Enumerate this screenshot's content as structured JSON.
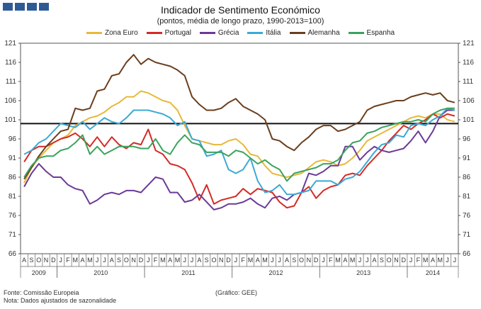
{
  "header": {
    "title": "Indicador de Sentimento Económico",
    "subtitle": "(pontos, média de longo prazo, 1990-2013=100)"
  },
  "footer": {
    "source": "Fonte: Comissão Europeia",
    "note": "Nota: Dados ajustados de sazonalidade",
    "credit": "(Gráfico: GEE)"
  },
  "chart_data": {
    "type": "line",
    "title": "Indicador de Sentimento Económico",
    "subtitle": "(pontos, média de longo prazo, 1990-2013=100)",
    "ylim": [
      66,
      121
    ],
    "yticks": [
      66,
      71,
      76,
      81,
      86,
      91,
      96,
      101,
      106,
      111,
      116,
      121
    ],
    "reference_line": 100,
    "legend_position": "top",
    "months": [
      "A",
      "S",
      "O",
      "N",
      "D",
      "J",
      "F",
      "M",
      "A",
      "M",
      "J",
      "J",
      "A",
      "S",
      "O",
      "N",
      "D",
      "J",
      "F",
      "M",
      "A",
      "M",
      "J",
      "J",
      "A",
      "S",
      "O",
      "N",
      "D",
      "J",
      "F",
      "M",
      "A",
      "M",
      "J",
      "J",
      "A",
      "S",
      "O",
      "N",
      "D",
      "J",
      "F",
      "M",
      "A",
      "M",
      "J",
      "J",
      "A",
      "S",
      "O",
      "N",
      "D",
      "J",
      "F",
      "M",
      "A",
      "M",
      "J",
      "J"
    ],
    "years": [
      {
        "label": "2009",
        "start": 0,
        "count": 5
      },
      {
        "label": "2010",
        "start": 5,
        "count": 12
      },
      {
        "label": "2011",
        "start": 17,
        "count": 12
      },
      {
        "label": "2012",
        "start": 29,
        "count": 12
      },
      {
        "label": "2013",
        "start": 41,
        "count": 12
      },
      {
        "label": "2014",
        "start": 53,
        "count": 7
      }
    ],
    "series": [
      {
        "name": "Zona Euro",
        "color": "#e8b83a",
        "values": [
          84.5,
          88.5,
          91,
          93,
          95,
          96,
          97,
          99.5,
          100.5,
          101.5,
          102,
          103,
          104.5,
          105.5,
          107,
          107,
          108.5,
          108,
          107,
          106,
          105.5,
          103.5,
          99.5,
          96,
          95.5,
          95,
          94.5,
          94.5,
          95.5,
          96,
          94.5,
          92,
          91.5,
          89,
          87,
          86.5,
          86,
          86.5,
          87,
          88.5,
          90,
          90.5,
          90,
          89,
          89.5,
          91,
          93,
          95.5,
          96.5,
          97.5,
          98.5,
          99.5,
          100.5,
          101.5,
          102,
          101.5,
          102.5,
          102.5,
          101,
          100.5
        ]
      },
      {
        "name": "Portugal",
        "color": "#d42a26",
        "values": [
          90,
          93,
          94,
          94,
          95,
          96,
          96.5,
          97.5,
          96,
          94,
          96.5,
          94,
          96.5,
          94.5,
          93.5,
          95,
          94.5,
          98.5,
          93,
          92,
          89.5,
          89,
          88,
          84.5,
          80,
          84,
          79,
          80,
          80.5,
          81,
          83,
          81.5,
          83,
          82.5,
          82,
          79.5,
          78,
          78.5,
          82,
          83.5,
          80.5,
          82.5,
          83.5,
          84,
          86.5,
          87,
          86.5,
          89,
          91,
          93,
          95.5,
          97.5,
          99.5,
          98.5,
          100,
          101,
          102.5,
          101.5,
          102.5,
          102
        ]
      },
      {
        "name": "Grécia",
        "color": "#6b3a96",
        "values": [
          83.5,
          87,
          89.5,
          87.5,
          86,
          86,
          84,
          83,
          82.5,
          79,
          80,
          81.5,
          82,
          81.5,
          82.5,
          82.5,
          82,
          84,
          86,
          85.5,
          82,
          82,
          79.5,
          80,
          81.5,
          79.5,
          77.5,
          78,
          79,
          79,
          79.5,
          80.5,
          79,
          78,
          80.5,
          81,
          80,
          81.5,
          82,
          87,
          86.5,
          87.5,
          89,
          89,
          94,
          94,
          90.5,
          92.5,
          94,
          93,
          92.5,
          93,
          93.5,
          95.5,
          98,
          95,
          98,
          102,
          103.5,
          103.5
        ]
      },
      {
        "name": "Itália",
        "color": "#3ba9d6",
        "values": [
          92,
          93,
          95,
          96,
          98,
          100,
          99.5,
          99,
          100.5,
          98.5,
          100,
          101.5,
          100.5,
          100,
          101.5,
          103.5,
          103.5,
          103.5,
          103,
          102.5,
          101.5,
          99.5,
          100.5,
          96,
          95.5,
          91.5,
          92,
          93,
          88,
          87,
          88,
          91,
          85,
          82,
          82.5,
          84,
          81.5,
          81.5,
          82,
          82.5,
          85,
          85,
          85,
          84,
          85.5,
          86,
          87.5,
          90,
          92.5,
          94.5,
          95,
          97,
          96.5,
          99.5,
          100,
          99.5,
          101,
          102,
          104,
          103.5
        ]
      },
      {
        "name": "Alemanha",
        "color": "#6b3e1c",
        "values": [
          85.5,
          88.5,
          91.5,
          94,
          96,
          98,
          98.5,
          104,
          103.5,
          104,
          108.5,
          109,
          112.5,
          113,
          116,
          118,
          115.5,
          117,
          116,
          115.5,
          115,
          114,
          112.5,
          107,
          105,
          103.5,
          103.5,
          104,
          105.5,
          106.5,
          104.5,
          103.5,
          102.5,
          101,
          96,
          95.5,
          94,
          93,
          95,
          96.5,
          98.5,
          99.5,
          99.5,
          98,
          98.5,
          99.5,
          100.5,
          103.5,
          104.5,
          105,
          105.5,
          106,
          106,
          107,
          107.5,
          108,
          107.5,
          108,
          106,
          105.5
        ]
      },
      {
        "name": "Espanha",
        "color": "#3aa35e",
        "values": [
          86,
          89,
          91,
          91.5,
          91.5,
          93,
          93.5,
          95,
          97,
          92,
          94,
          92,
          93,
          94,
          94,
          94,
          93.5,
          93.5,
          96,
          93,
          92,
          95,
          97,
          95,
          94.5,
          92.5,
          92.5,
          92.5,
          91.5,
          93,
          92.5,
          91,
          89.5,
          90.5,
          89,
          88,
          85,
          87,
          87.5,
          88,
          88.5,
          89.5,
          89.5,
          90.5,
          93,
          95,
          95.5,
          97.5,
          98,
          99,
          99.5,
          100,
          100.5,
          100.5,
          101,
          100.5,
          102.5,
          103.5,
          104,
          104
        ]
      }
    ]
  }
}
